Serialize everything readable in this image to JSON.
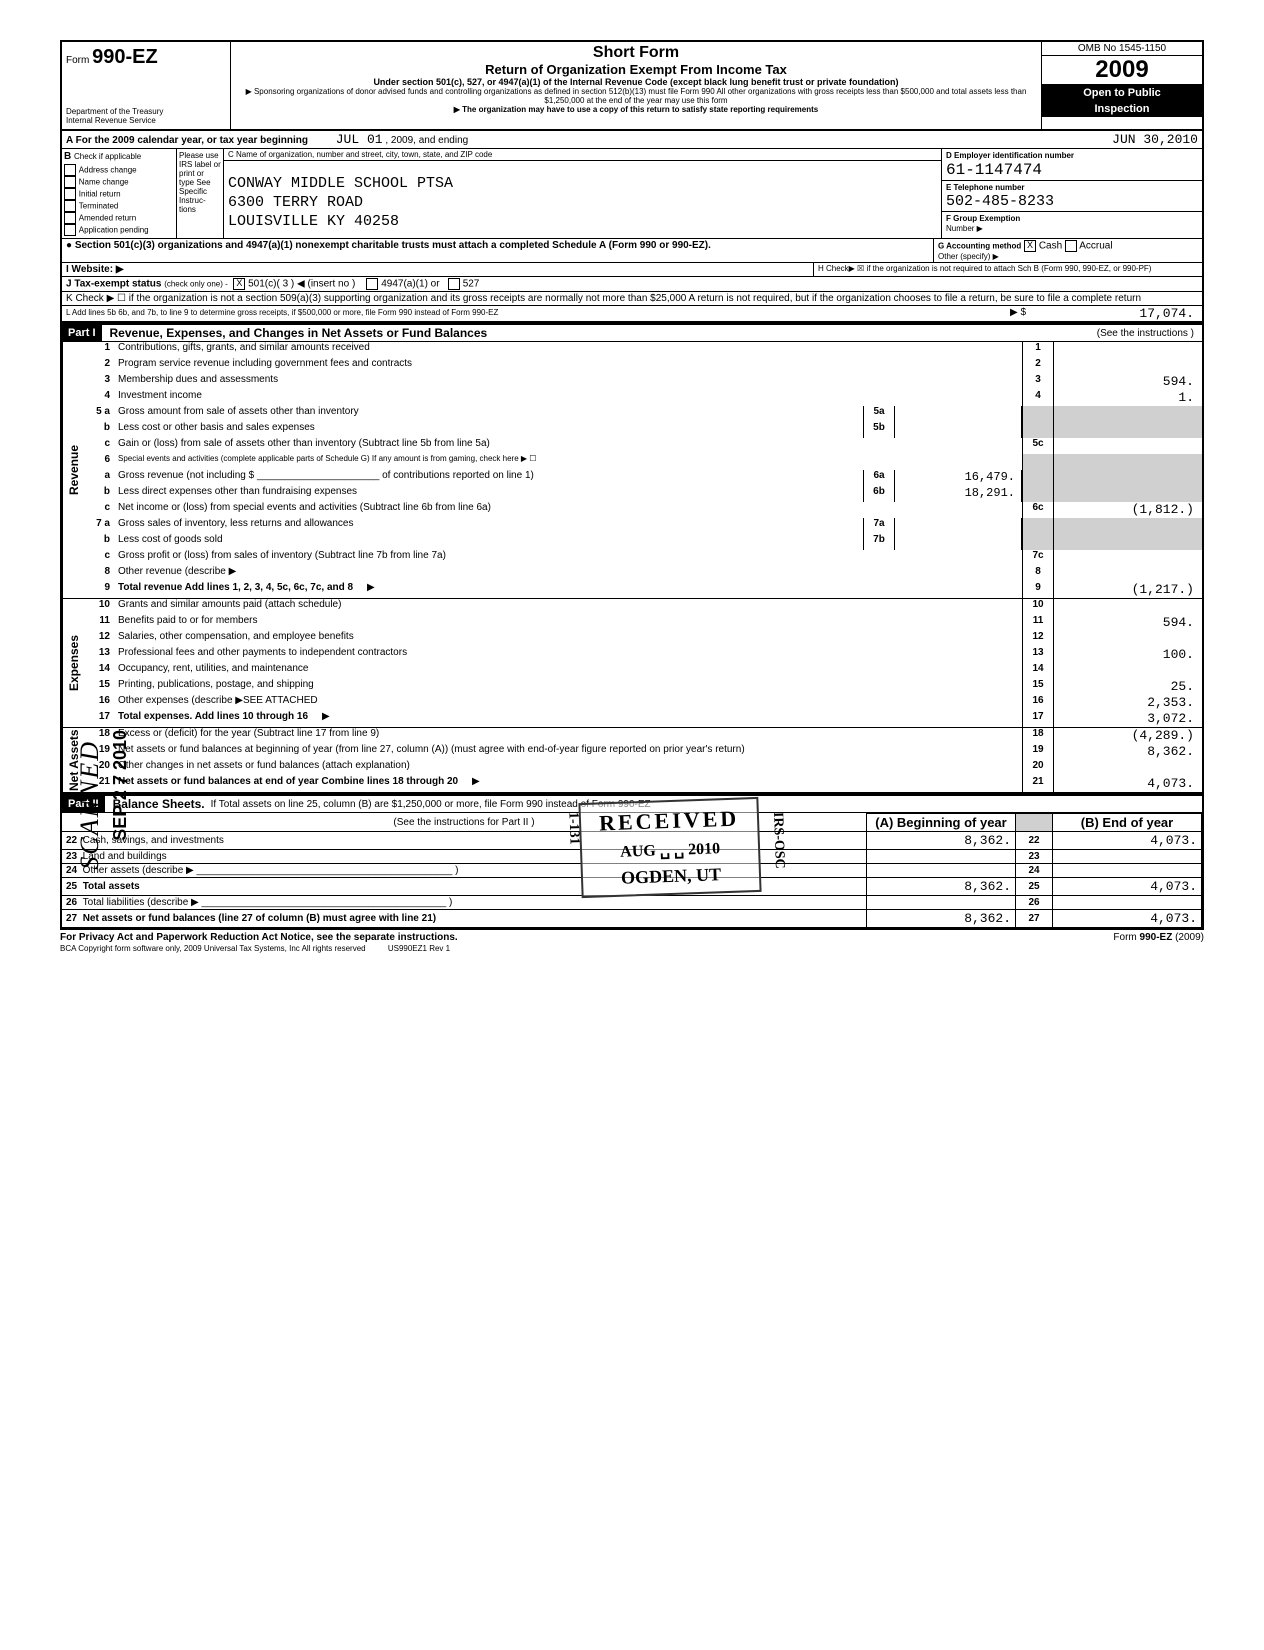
{
  "header": {
    "form_label": "Form",
    "form_number": "990-EZ",
    "dept": "Department of the Treasury",
    "irs": "Internal Revenue Service",
    "title": "Short Form",
    "subtitle": "Return of Organization Exempt From Income Tax",
    "under": "Under section 501(c), 527, or 4947(a)(1) of the Internal Revenue Code (except black lung benefit trust or private foundation)",
    "sponsor": "▶ Sponsoring organizations of donor advised funds and controlling organizations as defined in section 512(b)(13) must file Form 990  All other organizations with gross receipts less than $500,000 and total assets less than $1,250,000 at the end of the year may use this form",
    "copy_note": "▶ The organization may have to use a copy of this return to satisfy state reporting requirements",
    "omb": "OMB No 1545-1150",
    "year": "2009",
    "open": "Open to Public",
    "inspection": "Inspection"
  },
  "period": {
    "label_a": "A  For the 2009 calendar year, or tax year beginning",
    "begin": "JUL 01",
    "mid": ", 2009, and ending",
    "end": "JUN 30,2010"
  },
  "box_b": {
    "hdr": "B",
    "check": "Check if applicable",
    "please": "Please use IRS label or print or type  See Specific Instruc-tions",
    "items": [
      "Address change",
      "Name change",
      "Initial return",
      "Terminated",
      "Amended return",
      "Application pending"
    ]
  },
  "box_c": {
    "hdr": "C Name of organization, number and street, city, town, state, and ZIP code",
    "name": "CONWAY MIDDLE SCHOOL PTSA",
    "street": "6300 TERRY ROAD",
    "city": "LOUISVILLE KY 40258"
  },
  "box_d": {
    "hdr": "D Employer identification number",
    "val": "61-1147474"
  },
  "box_e": {
    "hdr": "E Telephone number",
    "val": "502-485-8233"
  },
  "box_f": {
    "hdr": "F Group Exemption",
    "sub": "Number  ▶"
  },
  "bullet_line": "●  Section 501(c)(3) organizations and 4947(a)(1) nonexempt charitable trusts must attach a completed Schedule A (Form 990 or 990-EZ).",
  "box_g": {
    "hdr": "G Accounting method",
    "cash": "Cash",
    "accrual": "Accrual",
    "other": "Other (specify)  ▶"
  },
  "box_i": "I  Website:        ▶",
  "box_h": "H  Check▶ ☒ if the organization is not required to attach Sch B   (Form 990, 990-EZ, or 990-PF)",
  "box_j": {
    "lbl": "J Tax-exempt status",
    "chk": "(check only one) -",
    "c501": "501(c)( 3  ) ◀ (insert no )",
    "c4947": "4947(a)(1) or",
    "c527": "527"
  },
  "box_k": "K Check  ▶ ☐   if the organization is not a section 509(a)(3) supporting organization and its gross receipts are normally not more than $25,000   A return is not required, but if the organization chooses to file a return, be sure to file a complete return",
  "box_l": {
    "lbl": "L   Add lines 5b  6b, and 7b, to line 9 to determine gross receipts, if $500,000 or more, file Form 990 instead of Form 990-EZ",
    "arrow": "▶ $",
    "val": "17,074."
  },
  "part1": {
    "hdr": "Part I",
    "title": "Revenue, Expenses, and Changes in Net Assets or Fund Balances",
    "note": "(See the instructions )"
  },
  "lines": {
    "l1": {
      "n": "1",
      "t": "Contributions, gifts, grants, and similar amounts received",
      "amt": ""
    },
    "l2": {
      "n": "2",
      "t": "Program service revenue including government fees and contracts",
      "amt": ""
    },
    "l3": {
      "n": "3",
      "t": "Membership dues and assessments",
      "amt": "594."
    },
    "l4": {
      "n": "4",
      "t": "Investment income",
      "amt": "1."
    },
    "l5a": {
      "n": "5 a",
      "t": "Gross amount from sale of assets other than inventory",
      "sn": "5a",
      "sa": ""
    },
    "l5b": {
      "n": "b",
      "t": "Less  cost or other basis and sales expenses",
      "sn": "5b",
      "sa": ""
    },
    "l5c": {
      "n": "c",
      "t": "Gain or (loss) from sale of assets other than inventory (Subtract line 5b from line 5a)",
      "rn": "5c",
      "amt": ""
    },
    "l6": {
      "n": "6",
      "t": "Special events and activities (complete applicable parts of Schedule G)  If any amount is from gaming, check here",
      "arrow": "▶ ☐"
    },
    "l6a": {
      "n": "a",
      "t": "Gross revenue (not including $ ______________________ of contributions reported on line 1)",
      "sn": "6a",
      "sa": "16,479."
    },
    "l6b": {
      "n": "b",
      "t": "Less  direct expenses other than fundraising expenses",
      "sn": "6b",
      "sa": "18,291."
    },
    "l6c": {
      "n": "c",
      "t": "Net income or (loss) from special events and activities (Subtract line 6b from line 6a)",
      "rn": "6c",
      "amt": "(1,812.)"
    },
    "l7a": {
      "n": "7 a",
      "t": "Gross sales of inventory, less returns and allowances",
      "sn": "7a",
      "sa": ""
    },
    "l7b": {
      "n": "b",
      "t": "Less  cost of goods sold",
      "sn": "7b",
      "sa": ""
    },
    "l7c": {
      "n": "c",
      "t": "Gross profit or (loss) from sales of inventory (Subtract line 7b from line 7a)",
      "rn": "7c",
      "amt": ""
    },
    "l8": {
      "n": "8",
      "t": "Other revenue (describe ▶",
      "rn": "8",
      "amt": ""
    },
    "l9": {
      "n": "9",
      "t": "Total revenue Add lines 1, 2, 3, 4, 5c, 6c, 7c, and 8",
      "rn": "9",
      "amt": "(1,217.)",
      "arrow": "▶"
    },
    "l10": {
      "n": "10",
      "t": "Grants and similar amounts paid (attach schedule)",
      "rn": "10",
      "amt": ""
    },
    "l11": {
      "n": "11",
      "t": "Benefits paid to or for members",
      "rn": "11",
      "amt": "594."
    },
    "l12": {
      "n": "12",
      "t": "Salaries, other compensation, and employee benefits",
      "rn": "12",
      "amt": ""
    },
    "l13": {
      "n": "13",
      "t": "Professional fees and other payments to independent contractors",
      "rn": "13",
      "amt": "100."
    },
    "l14": {
      "n": "14",
      "t": "Occupancy, rent, utilities, and maintenance",
      "rn": "14",
      "amt": ""
    },
    "l15": {
      "n": "15",
      "t": "Printing, publications, postage, and shipping",
      "rn": "15",
      "amt": "25."
    },
    "l16": {
      "n": "16",
      "t": "Other expenses (describe ▶SEE ATTACHED",
      "rn": "16",
      "amt": "2,353."
    },
    "l17": {
      "n": "17",
      "t": "Total expenses. Add lines 10 through 16",
      "rn": "17",
      "amt": "3,072.",
      "arrow": "▶"
    },
    "l18": {
      "n": "18",
      "t": "Excess or (deficit) for the year (Subtract line 17 from line 9)",
      "rn": "18",
      "amt": "(4,289.)"
    },
    "l19": {
      "n": "19",
      "t": "Net assets or fund balances at beginning of year (from line 27, column (A)) (must agree with end-of-year figure reported on prior year's return)",
      "rn": "19",
      "amt": "8,362."
    },
    "l20": {
      "n": "20",
      "t": "Other changes in net assets or fund balances (attach explanation)",
      "rn": "20",
      "amt": ""
    },
    "l21": {
      "n": "21",
      "t": "Net assets or fund balances at end of year  Combine lines 18 through 20",
      "rn": "21",
      "amt": "4,073.",
      "arrow": "▶"
    }
  },
  "part2": {
    "hdr": "Part II",
    "title": "Balance Sheets.",
    "note": "If Total assets on line 25, column (B) are $1,250,000 or more, file Form 990 instead of Form 990-EZ",
    "see": "(See the instructions for Part II )",
    "colA": "(A) Beginning of year",
    "colB": "(B) End of year"
  },
  "bs": {
    "l22": {
      "n": "22",
      "t": "Cash, savings, and investments",
      "a": "8,362.",
      "b": "4,073."
    },
    "l23": {
      "n": "23",
      "t": "Land and buildings",
      "a": "",
      "b": ""
    },
    "l24": {
      "n": "24",
      "t": "Other assets (describe  ▶ ______________________________________________ )",
      "a": "",
      "b": ""
    },
    "l25": {
      "n": "25",
      "t": "Total assets",
      "a": "8,362.",
      "b": "4,073."
    },
    "l26": {
      "n": "26",
      "t": "Total liabilities (describe ▶ ____________________________________________ )",
      "a": "",
      "b": ""
    },
    "l27": {
      "n": "27",
      "t": "Net assets or fund balances (line 27 of column (B) must agree with line 21)",
      "a": "8,362.",
      "b": "4,073."
    }
  },
  "footer": {
    "priv": "For Privacy Act and Paperwork Reduction Act Notice, see the separate instructions.",
    "bca": "BCA Copyright form software only, 2009 Universal Tax Systems, Inc  All rights reserved",
    "code": "US990EZ1     Rev 1",
    "form": "Form 990-EZ (2009)"
  },
  "stamps": {
    "received": "RECEIVED",
    "recv_date": "AUG ␣ ␣ 2010",
    "recv_loc": "OGDEN, UT",
    "recv_side": "IRS-OSC",
    "recv_code": "1-131",
    "scanned": "SCANNED",
    "sep": "SEP 2 7 2010"
  },
  "colors": {
    "black": "#000000",
    "white": "#ffffff",
    "shade": "#d0d0d0"
  }
}
